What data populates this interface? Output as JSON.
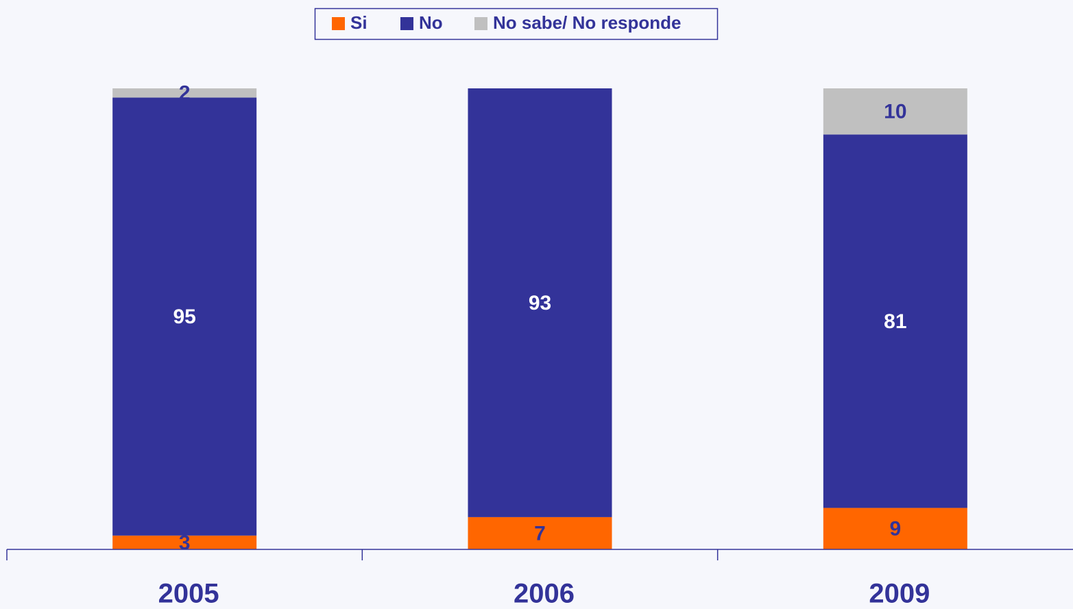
{
  "chart_data": {
    "type": "stacked_bar",
    "categories": [
      "2005",
      "2006",
      "2009"
    ],
    "series": [
      {
        "name": "Si",
        "color": "#ff6600",
        "label_color": "#333399",
        "values": [
          3,
          7,
          9
        ]
      },
      {
        "name": "No",
        "color": "#333399",
        "label_color": "#ffffff",
        "values": [
          95,
          93,
          81
        ]
      },
      {
        "name": "No sabe/ No responde",
        "color": "#c0c0c0",
        "label_color": "#333399",
        "values": [
          2,
          null,
          10
        ]
      }
    ],
    "legend": "top"
  }
}
